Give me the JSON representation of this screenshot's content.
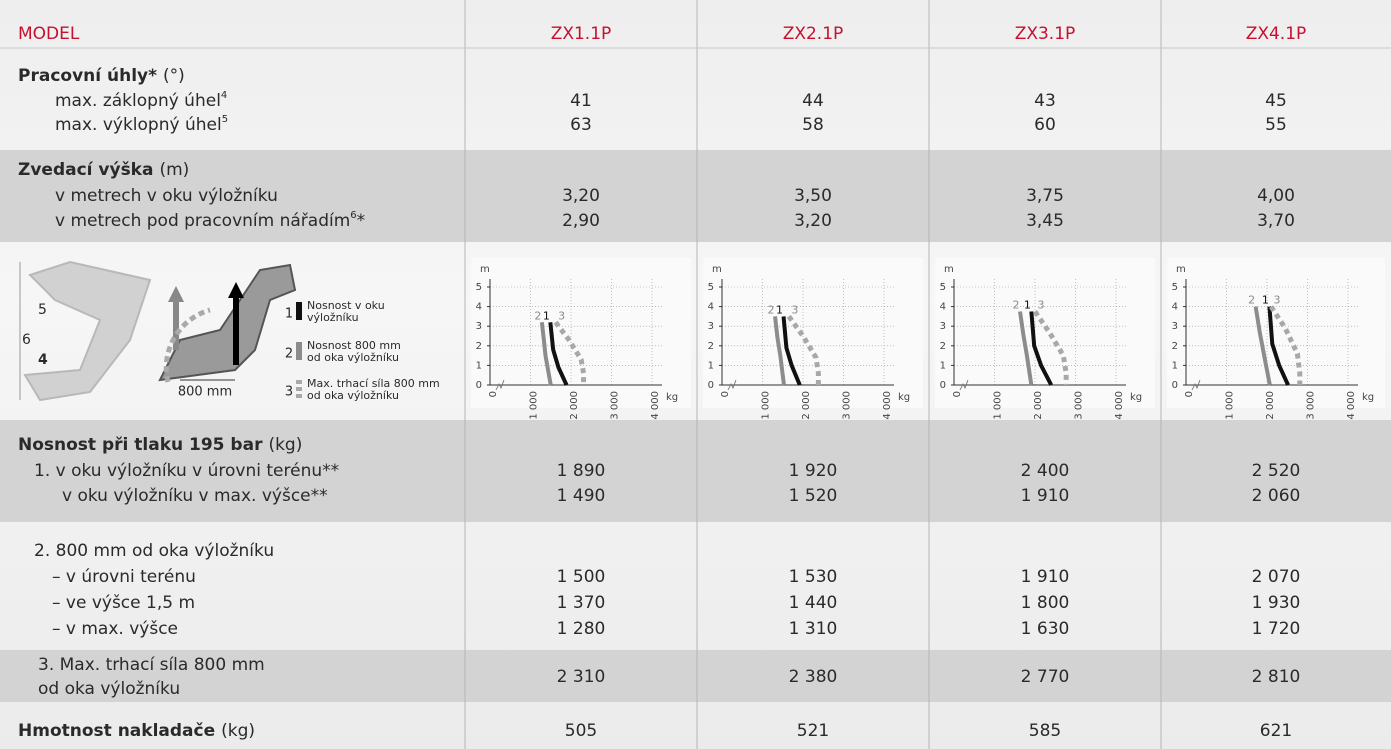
{
  "header": {
    "label": "MODEL",
    "models": [
      "ZX1.1P",
      "ZX2.1P",
      "ZX3.1P",
      "ZX4.1P"
    ]
  },
  "sections": [
    {
      "title": "Pracovní úhly*",
      "unit": "(°)",
      "rows": [
        {
          "label": "max. záklopný úhel",
          "sup": "4",
          "values": [
            "41",
            "44",
            "43",
            "45"
          ]
        },
        {
          "label": "max. výklopný úhel",
          "sup": "5",
          "values": [
            "63",
            "58",
            "60",
            "55"
          ]
        }
      ]
    },
    {
      "title": "Zvedací výška",
      "unit": "(m)",
      "rows": [
        {
          "label": "v metrech v oku výložníku",
          "values": [
            "3,20",
            "3,50",
            "3,75",
            "4,00"
          ]
        },
        {
          "label": "v metrech pod pracovním nářadím",
          "sup": "6",
          "suffix": "*",
          "values": [
            "2,90",
            "3,20",
            "3,45",
            "3,70"
          ]
        }
      ]
    },
    {
      "title": "Nosnost při tlaku 195 bar",
      "unit": "(kg)",
      "rows": [
        {
          "label": "1. v oku výložníku v úrovni terénu**",
          "values": [
            "1 890",
            "1 920",
            "2 400",
            "2 520"
          ]
        },
        {
          "label": "v oku výložníku v max. výšce**",
          "values": [
            "1 490",
            "1 520",
            "1 910",
            "2 060"
          ]
        }
      ]
    },
    {
      "rows": [
        {
          "label": "2. 800 mm od oka výložníku"
        },
        {
          "label": "– v úrovni terénu",
          "values": [
            "1 500",
            "1 530",
            "1 910",
            "2 070"
          ]
        },
        {
          "label": "– ve výšce 1,5 m",
          "values": [
            "1 370",
            "1 440",
            "1 800",
            "1 930"
          ]
        },
        {
          "label": "– v max. výšce",
          "values": [
            "1 280",
            "1 310",
            "1 630",
            "1 720"
          ]
        }
      ]
    },
    {
      "rows": [
        {
          "label_lines": [
            "3. Max. trhací síla 800 mm",
            "od oka výložníku"
          ],
          "values": [
            "2 310",
            "2 380",
            "2 770",
            "2 810"
          ]
        }
      ]
    },
    {
      "title": "Hmotnost nakladače",
      "unit": "(kg)",
      "values": [
        "505",
        "521",
        "585",
        "621"
      ]
    }
  ],
  "illustration": {
    "labels": [
      "5",
      "6",
      "4",
      "800 mm"
    ],
    "legend": [
      {
        "number": "1",
        "lines": [
          "Nosnost v oku",
          "výložníku"
        ]
      },
      {
        "number": "2",
        "lines": [
          "Nosnost 800 mm",
          "od oka výložníku"
        ]
      },
      {
        "number": "3",
        "lines": [
          "Max. trhací síla 800 mm",
          "od oka výložníku"
        ]
      }
    ]
  },
  "chart_data": [
    {
      "type": "line",
      "y_label": "m",
      "x_label": "kg",
      "xlim": [
        0,
        4000
      ],
      "ylim": [
        0,
        5
      ],
      "grid": true,
      "xticks": [
        0,
        {
          "value": 1000,
          "label": "1 000"
        },
        {
          "value": 2000,
          "label": "2 000"
        },
        {
          "value": 3000,
          "label": "3 000"
        },
        {
          "value": 4000,
          "label": "4 000"
        }
      ],
      "yticks": [
        0,
        1,
        2,
        3,
        4,
        5
      ],
      "series": [
        {
          "name": "1",
          "color": "#111111",
          "style": "solid",
          "x": [
            1490,
            1560,
            1690,
            1890
          ],
          "y": [
            3.2,
            1.8,
            0.9,
            0
          ]
        },
        {
          "name": "2",
          "color": "#8c8c8c",
          "style": "solid",
          "x": [
            1280,
            1330,
            1370,
            1500
          ],
          "y": [
            3.2,
            2.3,
            1.5,
            0
          ]
        },
        {
          "name": "3",
          "color": "#a8a8a8",
          "style": "dashed",
          "x": [
            1620,
            1950,
            2250,
            2310,
            2310
          ],
          "y": [
            3.2,
            2.3,
            1.3,
            0.6,
            0
          ]
        }
      ]
    },
    {
      "type": "line",
      "y_label": "m",
      "x_label": "kg",
      "xlim": [
        0,
        4000
      ],
      "ylim": [
        0,
        5
      ],
      "grid": true,
      "xticks": [
        0,
        {
          "value": 1000,
          "label": "1 000"
        },
        {
          "value": 2000,
          "label": "2 000"
        },
        {
          "value": 3000,
          "label": "3 000"
        },
        {
          "value": 4000,
          "label": "4 000"
        }
      ],
      "yticks": [
        0,
        1,
        2,
        3,
        4,
        5
      ],
      "series": [
        {
          "name": "1",
          "color": "#111111",
          "style": "solid",
          "x": [
            1520,
            1590,
            1720,
            1920
          ],
          "y": [
            3.5,
            1.9,
            1,
            0
          ]
        },
        {
          "name": "2",
          "color": "#8c8c8c",
          "style": "solid",
          "x": [
            1310,
            1370,
            1440,
            1530
          ],
          "y": [
            3.5,
            2.4,
            1.5,
            0
          ]
        },
        {
          "name": "3",
          "color": "#a8a8a8",
          "style": "dashed",
          "x": [
            1650,
            2000,
            2320,
            2380,
            2380
          ],
          "y": [
            3.5,
            2.5,
            1.4,
            0.6,
            0
          ]
        }
      ]
    },
    {
      "type": "line",
      "y_label": "m",
      "x_label": "kg",
      "xlim": [
        0,
        4000
      ],
      "ylim": [
        0,
        5
      ],
      "grid": true,
      "xticks": [
        0,
        {
          "value": 1000,
          "label": "1 000"
        },
        {
          "value": 2000,
          "label": "2 000"
        },
        {
          "value": 3000,
          "label": "3 000"
        },
        {
          "value": 4000,
          "label": "4 000"
        }
      ],
      "yticks": [
        0,
        1,
        2,
        3,
        4,
        5
      ],
      "series": [
        {
          "name": "1",
          "color": "#111111",
          "style": "solid",
          "x": [
            1910,
            1980,
            2150,
            2400
          ],
          "y": [
            3.75,
            2,
            1,
            0
          ]
        },
        {
          "name": "2",
          "color": "#8c8c8c",
          "style": "solid",
          "x": [
            1630,
            1710,
            1800,
            1910
          ],
          "y": [
            3.75,
            2.6,
            1.5,
            0
          ]
        },
        {
          "name": "3",
          "color": "#a8a8a8",
          "style": "dashed",
          "x": [
            2000,
            2350,
            2700,
            2770,
            2770
          ],
          "y": [
            3.75,
            2.7,
            1.5,
            0.6,
            0
          ]
        }
      ]
    },
    {
      "type": "line",
      "y_label": "m",
      "x_label": "kg",
      "xlim": [
        0,
        4000
      ],
      "ylim": [
        0,
        5
      ],
      "grid": true,
      "xticks": [
        0,
        {
          "value": 1000,
          "label": "1 000"
        },
        {
          "value": 2000,
          "label": "2 000"
        },
        {
          "value": 3000,
          "label": "3 000"
        },
        {
          "value": 4000,
          "label": "4 000"
        }
      ],
      "yticks": [
        0,
        1,
        2,
        3,
        4,
        5
      ],
      "series": [
        {
          "name": "1",
          "color": "#111111",
          "style": "solid",
          "x": [
            2060,
            2130,
            2300,
            2520
          ],
          "y": [
            4,
            2.1,
            1,
            0
          ]
        },
        {
          "name": "2",
          "color": "#8c8c8c",
          "style": "solid",
          "x": [
            1720,
            1820,
            1930,
            2070
          ],
          "y": [
            4,
            2.7,
            1.5,
            0
          ]
        },
        {
          "name": "3",
          "color": "#a8a8a8",
          "style": "dashed",
          "x": [
            2100,
            2450,
            2750,
            2810,
            2810
          ],
          "y": [
            4,
            2.9,
            1.6,
            0.6,
            0
          ]
        }
      ]
    }
  ]
}
